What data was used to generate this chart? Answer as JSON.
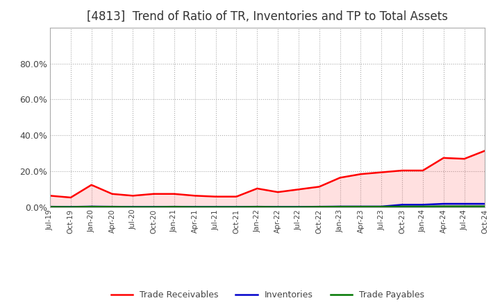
{
  "title": "[4813]  Trend of Ratio of TR, Inventories and TP to Total Assets",
  "title_fontsize": 12,
  "background_color": "#ffffff",
  "grid_color": "#aaaaaa",
  "ylim": [
    0.0,
    1.0
  ],
  "yticks": [
    0.0,
    0.2,
    0.4,
    0.6,
    0.8
  ],
  "dates": [
    "Jul-19",
    "Oct-19",
    "Jan-20",
    "Apr-20",
    "Jul-20",
    "Oct-20",
    "Jan-21",
    "Apr-21",
    "Jul-21",
    "Oct-21",
    "Jan-22",
    "Apr-22",
    "Jul-22",
    "Oct-22",
    "Jan-23",
    "Apr-23",
    "Jul-23",
    "Oct-23",
    "Jan-24",
    "Apr-24",
    "Jul-24",
    "Oct-24"
  ],
  "trade_receivables": [
    0.065,
    0.055,
    0.125,
    0.075,
    0.065,
    0.075,
    0.075,
    0.065,
    0.06,
    0.06,
    0.105,
    0.085,
    0.1,
    0.115,
    0.165,
    0.185,
    0.195,
    0.205,
    0.205,
    0.275,
    0.27,
    0.315
  ],
  "inventories": [
    0.004,
    0.003,
    0.005,
    0.004,
    0.003,
    0.003,
    0.004,
    0.003,
    0.003,
    0.003,
    0.004,
    0.003,
    0.003,
    0.004,
    0.005,
    0.005,
    0.005,
    0.015,
    0.015,
    0.02,
    0.02,
    0.02
  ],
  "trade_payables": [
    0.003,
    0.002,
    0.004,
    0.003,
    0.002,
    0.002,
    0.003,
    0.002,
    0.002,
    0.002,
    0.003,
    0.002,
    0.002,
    0.003,
    0.004,
    0.004,
    0.004,
    0.005,
    0.005,
    0.006,
    0.006,
    0.006
  ],
  "tr_color": "#ff0000",
  "inv_color": "#0000cc",
  "tp_color": "#007700",
  "line_width": 1.8,
  "fill_alpha": 0.12,
  "legend_labels": [
    "Trade Receivables",
    "Inventories",
    "Trade Payables"
  ],
  "legend_fontsize": 9
}
